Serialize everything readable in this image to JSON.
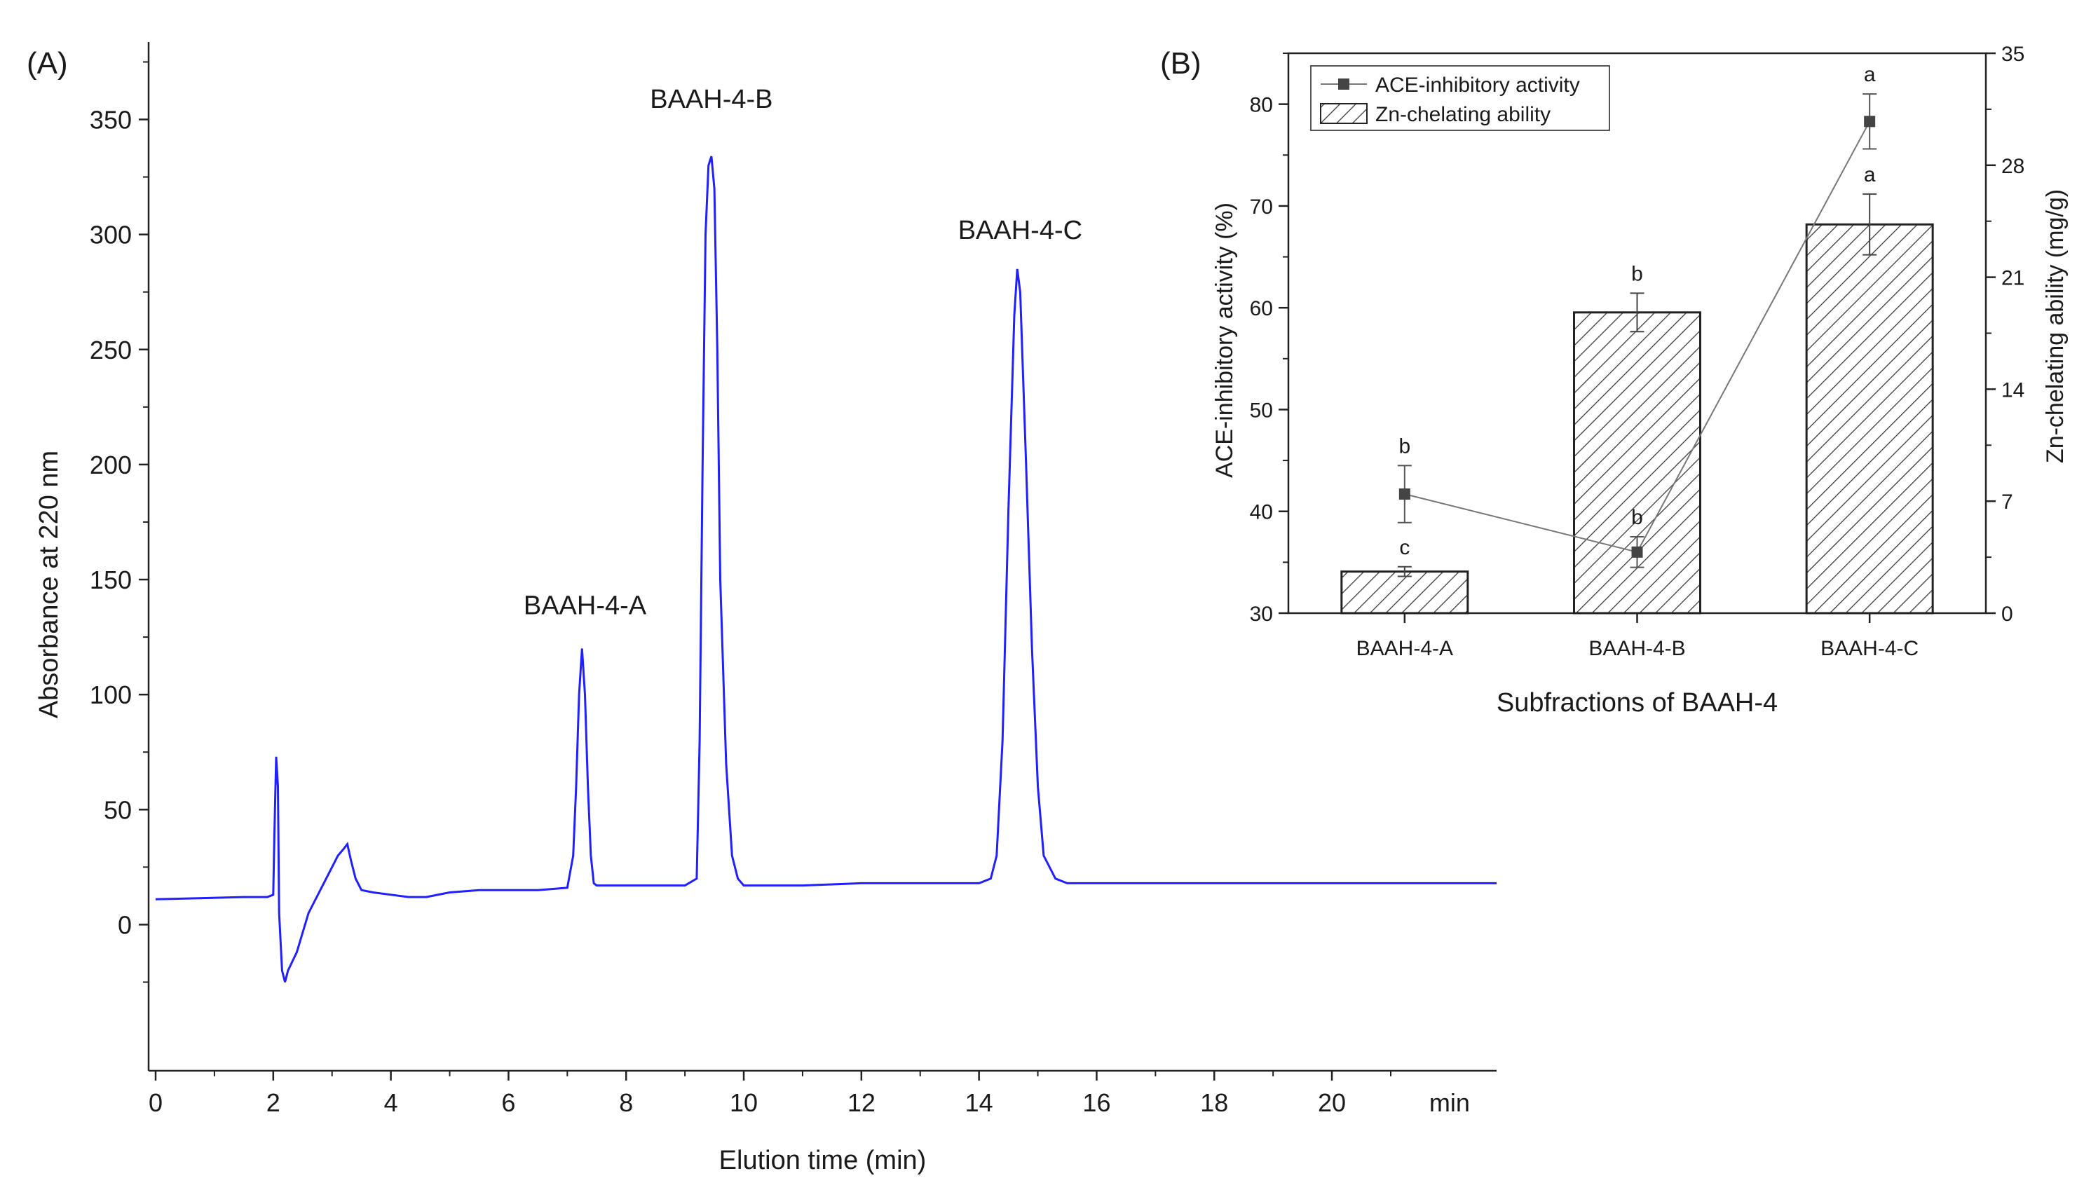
{
  "panels": {
    "a_label": "(A)",
    "b_label": "(B)"
  },
  "chart_data": [
    {
      "type": "line",
      "panel": "(A)",
      "xlabel": "Elution time (min)",
      "ylabel": "Absorbance at 220 nm",
      "x_unit_tick": "min",
      "xlim": [
        0,
        22.8
      ],
      "ylim": [
        -55,
        380
      ],
      "xticks": [
        0,
        2,
        4,
        6,
        8,
        10,
        12,
        14,
        16,
        18,
        20
      ],
      "yticks": [
        0,
        50,
        100,
        150,
        200,
        250,
        300,
        350
      ],
      "line_color": "#1f1fff",
      "series": [
        {
          "x": [
            0,
            1.5,
            1.9,
            2.0,
            2.02,
            2.05,
            2.08,
            2.1,
            2.15,
            2.2,
            2.25,
            2.4,
            2.6,
            2.8,
            3.0,
            3.1,
            3.2,
            3.26,
            3.32,
            3.4,
            3.5,
            3.7,
            4.0,
            4.3,
            4.6,
            5.0,
            5.5,
            6.0,
            6.5,
            7.0,
            7.1,
            7.15,
            7.2,
            7.25,
            7.3,
            7.35,
            7.4,
            7.45,
            7.5,
            7.6,
            8.0,
            8.5,
            9.0,
            9.2,
            9.25,
            9.3,
            9.35,
            9.4,
            9.45,
            9.5,
            9.55,
            9.6,
            9.7,
            9.8,
            9.9,
            10.0,
            10.5,
            11.0,
            12.0,
            13.0,
            13.5,
            14.0,
            14.2,
            14.3,
            14.4,
            14.5,
            14.6,
            14.65,
            14.7,
            14.8,
            14.9,
            15.0,
            15.1,
            15.3,
            15.5,
            16.0,
            17.0,
            18.0,
            19.0,
            20.0,
            21.0,
            22.0,
            22.8
          ],
          "y": [
            11,
            12,
            12,
            13,
            40,
            73,
            60,
            5,
            -20,
            -25,
            -20,
            -12,
            5,
            15,
            25,
            30,
            33,
            35,
            28,
            20,
            15,
            14,
            13,
            12,
            12,
            14,
            15,
            15,
            15,
            16,
            30,
            60,
            100,
            120,
            100,
            60,
            30,
            18,
            17,
            17,
            17,
            17,
            17,
            20,
            80,
            200,
            300,
            330,
            334,
            320,
            250,
            150,
            70,
            30,
            20,
            17,
            17,
            17,
            18,
            18,
            18,
            18,
            20,
            30,
            80,
            180,
            265,
            285,
            275,
            200,
            120,
            60,
            30,
            20,
            18,
            18,
            18,
            18,
            18,
            18,
            18,
            18,
            18
          ]
        }
      ],
      "annotations": [
        {
          "text": "BAAH-4-A",
          "x": 7.3,
          "y": 135
        },
        {
          "text": "BAAH-4-B",
          "x": 9.45,
          "y": 355
        },
        {
          "text": "BAAH-4-C",
          "x": 14.7,
          "y": 298
        }
      ]
    },
    {
      "type": "bar",
      "panel": "(B)",
      "xlabel": "Subfractions of BAAH-4",
      "ylabel": "ACE-inhibitory activity (%)",
      "y2label": "Zn-chelating ability (mg/g)",
      "categories": [
        "BAAH-4-A",
        "BAAH-4-B",
        "BAAH-4-C"
      ],
      "ylim": [
        30,
        85
      ],
      "yticks": [
        30,
        40,
        50,
        60,
        70,
        80
      ],
      "y2lim": [
        0,
        35
      ],
      "y2ticks": [
        0,
        7,
        14,
        21,
        28,
        35
      ],
      "legend_position": "top-left",
      "series": [
        {
          "name": "Zn-chelating ability",
          "kind": "bar",
          "axis": "right",
          "values": [
            2.6,
            18.8,
            24.3
          ],
          "errors": [
            0.3,
            1.2,
            1.9
          ],
          "letters": [
            "c",
            "b",
            "a"
          ]
        },
        {
          "name": "ACE-inhibitory activity",
          "kind": "line",
          "axis": "left",
          "values": [
            41.7,
            36.0,
            78.3
          ],
          "errors": [
            2.8,
            1.5,
            2.7
          ],
          "letters": [
            "b",
            "b",
            "a"
          ]
        }
      ]
    }
  ]
}
